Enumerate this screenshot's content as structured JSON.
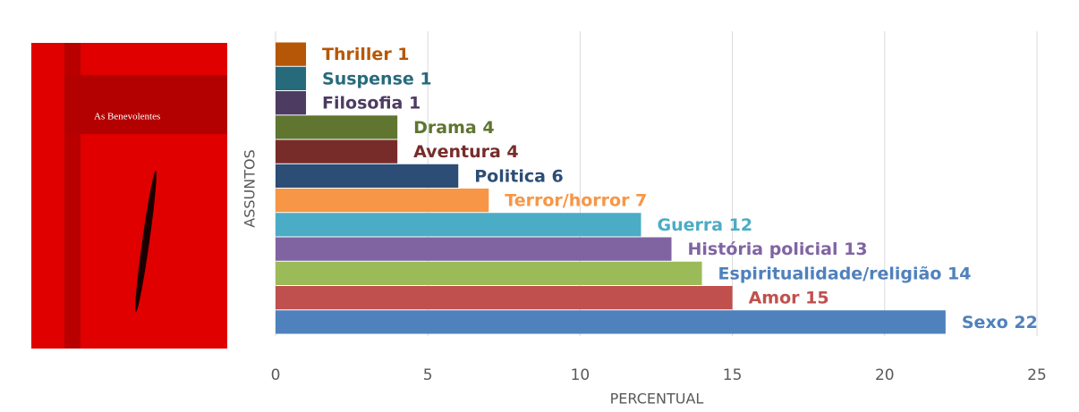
{
  "book_cover": {
    "title": "As Benevolentes"
  },
  "chart_data": {
    "type": "bar",
    "orientation": "horizontal",
    "xlabel": "PERCENTUAL",
    "ylabel": "ASSUNTOS",
    "values": [
      22,
      15,
      14,
      13,
      12,
      7,
      6,
      4,
      4,
      1,
      1,
      1
    ],
    "value_labels": [
      "Sexo 22",
      "Amor 15",
      "Espiritualidade/religião 14",
      "História policial 13",
      "Guerra 12",
      "Terror/horror 7",
      "Politica 6",
      "Aventura 4",
      "Drama 4",
      "Filosofia 1",
      "Suspense 1",
      "Thriller 1"
    ],
    "colors": [
      "#4f81bd",
      "#c0504d",
      "#9bbb59",
      "#8064a2",
      "#4bacc6",
      "#f79646",
      "#2c4d75",
      "#772c2a",
      "#5f7530",
      "#4d3b62",
      "#276a7c",
      "#b65708"
    ],
    "label_colors": [
      "#4f81bd",
      "#c0504d",
      "#4f81bd",
      "#8064a2",
      "#4bacc6",
      "#f79646",
      "#2c4d75",
      "#772c2a",
      "#5f7530",
      "#4d3b62",
      "#276a7c",
      "#b65708"
    ],
    "xlim": [
      0,
      25
    ],
    "xticks": [
      0,
      5,
      10,
      15,
      20,
      25
    ],
    "grid": true
  }
}
